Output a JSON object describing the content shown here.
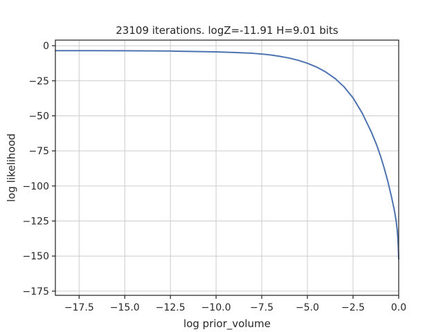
{
  "chart_data": {
    "type": "line",
    "title": "23109 iterations. logZ=-11.91 H=9.01 bits",
    "xlabel": "log prior_volume",
    "ylabel": "log likelihood",
    "xlim": [
      -18.8,
      0.0
    ],
    "ylim": [
      -178,
      4
    ],
    "xticks": [
      -17.5,
      -15.0,
      -12.5,
      -10.0,
      -7.5,
      -5.0,
      -2.5,
      0.0
    ],
    "xtick_labels": [
      "−17.5",
      "−15.0",
      "−12.5",
      "−10.0",
      "−7.5",
      "−5.0",
      "−2.5",
      "0.0"
    ],
    "yticks": [
      0,
      -25,
      -50,
      -75,
      -100,
      -125,
      -150,
      -175
    ],
    "ytick_labels": [
      "0",
      "−25",
      "−50",
      "−75",
      "−100",
      "−125",
      "−150",
      "−175"
    ],
    "grid": true,
    "line_color": "#4c72b0",
    "series": [
      {
        "x": [
          -18.8,
          -17.5,
          -15.0,
          -12.5,
          -10.0,
          -9.0,
          -8.0,
          -7.5,
          -7.0,
          -6.5,
          -6.0,
          -5.5,
          -5.0,
          -4.5,
          -4.0,
          -3.5,
          -3.0,
          -2.5,
          -2.0,
          -1.5,
          -1.2,
          -1.0,
          -0.8,
          -0.6,
          -0.4,
          -0.25,
          -0.15,
          -0.08,
          -0.04,
          -0.015,
          0.0
        ],
        "y": [
          -3.5,
          -3.5,
          -3.6,
          -3.8,
          -4.4,
          -4.8,
          -5.4,
          -5.9,
          -6.6,
          -7.6,
          -8.8,
          -10.4,
          -12.5,
          -15.2,
          -18.7,
          -23.2,
          -29.2,
          -37.2,
          -48.0,
          -61.5,
          -71.0,
          -78.5,
          -87.0,
          -96.5,
          -107.5,
          -116.5,
          -124.0,
          -131.5,
          -138.5,
          -146.0,
          -152.0
        ]
      }
    ]
  }
}
